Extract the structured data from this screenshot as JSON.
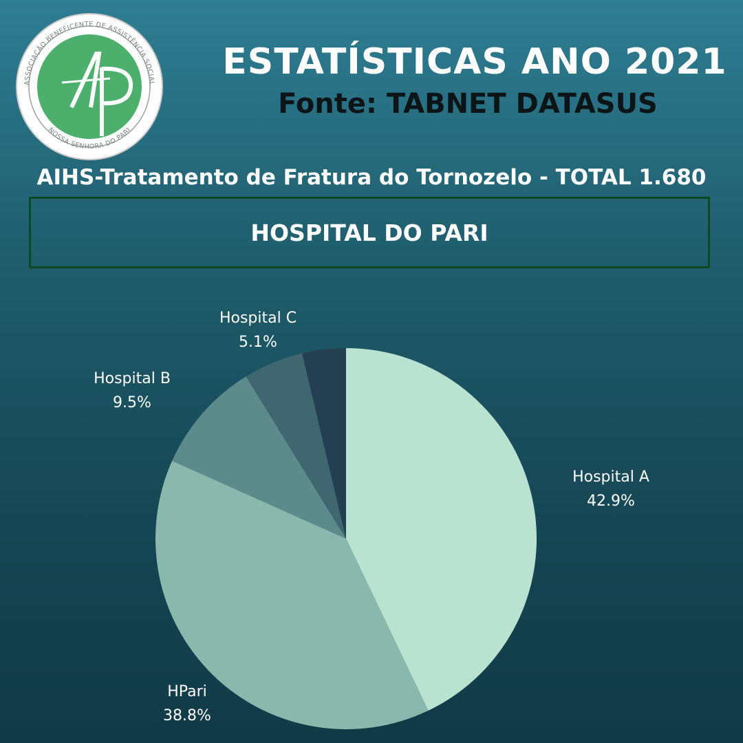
{
  "header": {
    "title": "ESTATÍSTICAS ANO 2021",
    "source": "Fonte: TABNET DATASUS"
  },
  "logo": {
    "ring_text": "ASSOCIAÇÃO BENEFICENTE DE ASSISTÊNCIA SOCIAL",
    "ring_text_bottom": "NOSSA SENHORA DO PARI",
    "monogram": "AP"
  },
  "section": {
    "title": "AIHS-Tratamento de Fratura do Tornozelo - TOTAL 1.680",
    "box_label": "HOSPITAL DO PARI"
  },
  "colors": {
    "hospital_a": "#b9e2d0",
    "hpari": "#8ab8ad",
    "hospital_b": "#5d8a8a",
    "hospital_c": "#40666f",
    "other": "#253f52"
  },
  "chart_data": {
    "type": "pie",
    "title": "",
    "slices": [
      {
        "label": "Hospital A",
        "value": 42.9,
        "display": "42.9%",
        "color_key": "hospital_a"
      },
      {
        "label": "HPari",
        "value": 38.8,
        "display": "38.8%",
        "color_key": "hpari"
      },
      {
        "label": "Hospital B",
        "value": 9.5,
        "display": "9.5%",
        "color_key": "hospital_b"
      },
      {
        "label": "Hospital C",
        "value": 5.1,
        "display": "5.1%",
        "color_key": "hospital_c"
      },
      {
        "label": "",
        "value": 3.7,
        "display": "",
        "color_key": "other"
      }
    ]
  }
}
